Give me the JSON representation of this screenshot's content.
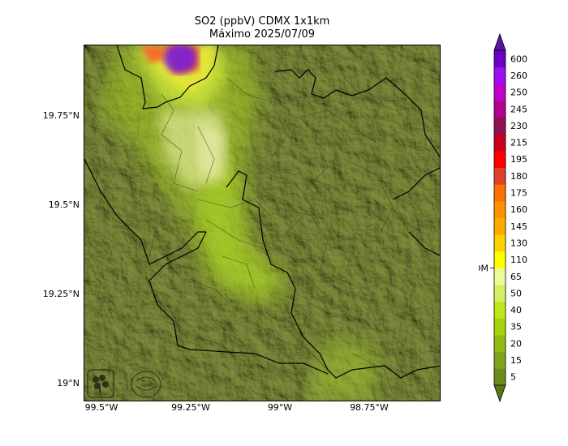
{
  "title": {
    "line1": "SO2 (ppbV) CDMX 1x1km",
    "line2": "Máximo 2025/07/09"
  },
  "axes": {
    "lat_ticks": [
      {
        "label": "19.75°N",
        "value": 19.75
      },
      {
        "label": "19.5°N",
        "value": 19.5
      },
      {
        "label": "19.25°N",
        "value": 19.25
      },
      {
        "label": "19°N",
        "value": 19.0
      }
    ],
    "lon_ticks": [
      {
        "label": "99.5°W",
        "value": -99.5
      },
      {
        "label": "99.25°W",
        "value": -99.25
      },
      {
        "label": "99°W",
        "value": -99.0
      },
      {
        "label": "98.75°W",
        "value": -98.75
      }
    ]
  },
  "colorbar": {
    "nom_label": "NOM",
    "nom_value": "65",
    "levels": [
      {
        "label": "5",
        "color": "#6b8c1c"
      },
      {
        "label": "15",
        "color": "#7ea31c"
      },
      {
        "label": "20",
        "color": "#92bb14"
      },
      {
        "label": "35",
        "color": "#a6d40c"
      },
      {
        "label": "40",
        "color": "#bbe818"
      },
      {
        "label": "50",
        "color": "#d4f060"
      },
      {
        "label": "65",
        "color": "#ecfa9a"
      },
      {
        "label": "110",
        "color": "#ffff00"
      },
      {
        "label": "130",
        "color": "#ffd200"
      },
      {
        "label": "145",
        "color": "#ffaa00"
      },
      {
        "label": "160",
        "color": "#ff9000"
      },
      {
        "label": "175",
        "color": "#ff7000"
      },
      {
        "label": "180",
        "color": "#e0402a"
      },
      {
        "label": "195",
        "color": "#ff0000"
      },
      {
        "label": "215",
        "color": "#c8001e"
      },
      {
        "label": "230",
        "color": "#901050"
      },
      {
        "label": "245",
        "color": "#b0008c"
      },
      {
        "label": "250",
        "color": "#c000c8"
      },
      {
        "label": "260",
        "color": "#9a10f0"
      },
      {
        "label": "600",
        "color": "#6a00c0"
      }
    ],
    "under_color": "#5a7818",
    "over_color": "#5a14a0"
  },
  "logos": {
    "left": "SEDEMA",
    "right": "CDMX"
  }
}
